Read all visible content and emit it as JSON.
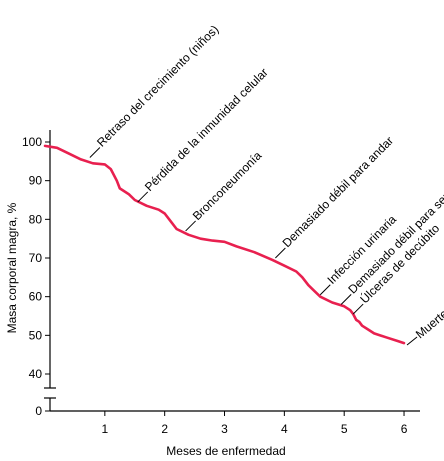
{
  "chart_data": {
    "type": "line",
    "xlabel": "Meses de enfermedad",
    "ylabel": "Masa corporal magra, %",
    "xlim": [
      0,
      6.2
    ],
    "x_ticks": [
      1,
      2,
      3,
      4,
      5,
      6
    ],
    "y_ticks": [
      40,
      50,
      60,
      70,
      80,
      90,
      100
    ],
    "y_break_tick": 0,
    "ylim": [
      40,
      100
    ],
    "grid": false,
    "series": [
      {
        "color": "#e8204f",
        "x": [
          0,
          0.2,
          0.4,
          0.6,
          0.8,
          1.0,
          1.1,
          1.2,
          1.25,
          1.4,
          1.5,
          1.7,
          1.9,
          2.0,
          2.1,
          2.2,
          2.4,
          2.6,
          2.8,
          3.0,
          3.2,
          3.5,
          3.8,
          4.0,
          4.2,
          4.3,
          4.4,
          4.5,
          4.6,
          4.8,
          5.0,
          5.1,
          5.15,
          5.2,
          5.25,
          5.3,
          5.4,
          5.5,
          5.7,
          5.9,
          6.0
        ],
        "y": [
          99,
          98.5,
          97,
          95.5,
          94.5,
          94.2,
          93,
          90,
          88,
          86.5,
          85,
          83.5,
          82.5,
          81.5,
          79.5,
          77.5,
          76,
          75,
          74.5,
          74.2,
          73,
          71.5,
          69.5,
          68,
          66.5,
          65,
          63,
          61.5,
          60,
          58.5,
          57.5,
          56.5,
          55.5,
          54,
          53.5,
          52.5,
          51.5,
          50.5,
          49.5,
          48.5,
          48
        ]
      }
    ],
    "annotations": [
      {
        "text": "Retraso del crecimiento (niños)",
        "x": 0.75,
        "y": 96
      },
      {
        "text": "Pérdida de la inmunidad celular",
        "x": 1.55,
        "y": 84.5
      },
      {
        "text": "Bronconeumonía",
        "x": 2.35,
        "y": 77
      },
      {
        "text": "Demasiado débil para andar",
        "x": 3.85,
        "y": 70
      },
      {
        "text": "Infección urinaria",
        "x": 4.6,
        "y": 60.5
      },
      {
        "text": "Demasiado débil para sentarse",
        "x": 4.95,
        "y": 58
      },
      {
        "text": "Úlceras de decúbito",
        "x": 5.15,
        "y": 55.5
      },
      {
        "text": "Muerte",
        "x": 6.05,
        "y": 47.5
      }
    ]
  }
}
